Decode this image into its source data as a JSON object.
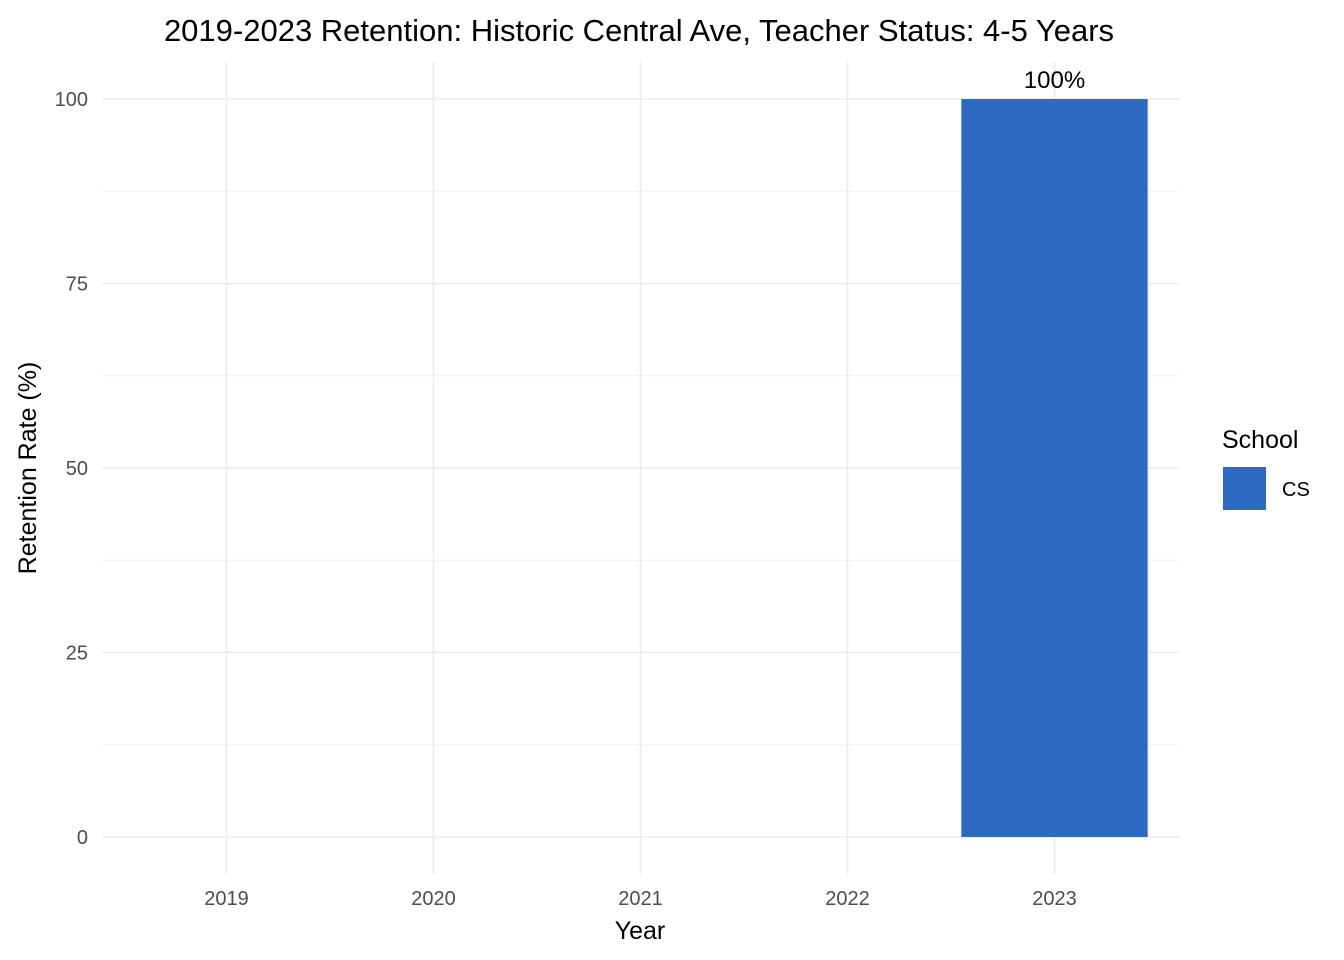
{
  "chart_data": {
    "type": "bar",
    "title": "2019-2023 Retention: Historic Central Ave, Teacher Status: 4-5 Years",
    "xlabel": "Year",
    "ylabel": "Retention Rate (%)",
    "categories": [
      "2019",
      "2020",
      "2021",
      "2022",
      "2023"
    ],
    "series": [
      {
        "name": "CS",
        "values": [
          null,
          null,
          null,
          null,
          100
        ],
        "data_labels": [
          null,
          null,
          null,
          null,
          "100%"
        ],
        "color": "#2e69c4"
      }
    ],
    "y_ticks": [
      0,
      25,
      50,
      75,
      100
    ],
    "ylim": [
      -5,
      105
    ],
    "grid": true,
    "legend": {
      "title": "School",
      "placement": "right"
    }
  }
}
